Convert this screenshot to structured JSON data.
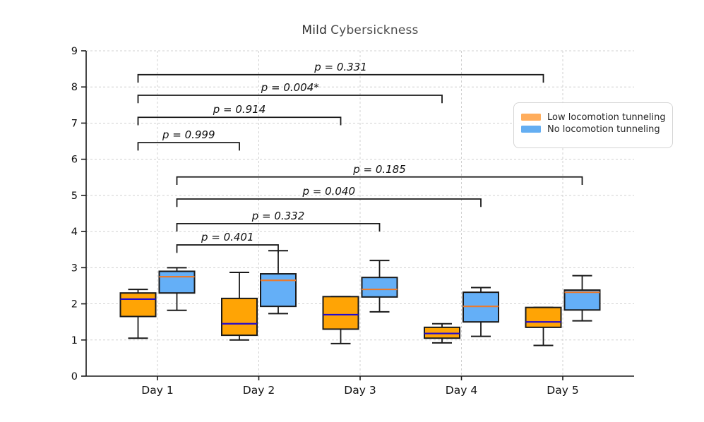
{
  "chart_data": {
    "type": "boxplot",
    "title": "Mild Cybersickness",
    "title_parts": {
      "emphasis": "Mild",
      "rest": "Cybersickness"
    },
    "categories": [
      "Day 1",
      "Day 2",
      "Day 3",
      "Day 4",
      "Day 5"
    ],
    "xlabel": "",
    "ylabel": "",
    "ylim": [
      0,
      9
    ],
    "yticks": [
      0,
      1,
      2,
      3,
      4,
      5,
      6,
      7,
      8,
      9
    ],
    "grid": {
      "show": true,
      "style": "dashed",
      "color": "#d0d0d0"
    },
    "axis_color": "#1a1a1a",
    "legend": {
      "position": "upper right"
    },
    "series": [
      {
        "name": "Low locomotion tunneling",
        "color": "#ffa405",
        "median_color": "#2209ce",
        "legend_color": "#ffad5c",
        "side": "left",
        "boxes": [
          {
            "whislo": 1.05,
            "q1": 1.65,
            "med": 2.13,
            "q3": 2.3,
            "whishi": 2.4
          },
          {
            "whislo": 1.0,
            "q1": 1.13,
            "med": 1.45,
            "q3": 2.15,
            "whishi": 2.87
          },
          {
            "whislo": 0.9,
            "q1": 1.3,
            "med": 1.7,
            "q3": 2.2,
            "whishi": 2.2
          },
          {
            "whislo": 0.92,
            "q1": 1.05,
            "med": 1.18,
            "q3": 1.35,
            "whishi": 1.45
          },
          {
            "whislo": 0.85,
            "q1": 1.35,
            "med": 1.5,
            "q3": 1.9,
            "whishi": 1.9
          }
        ]
      },
      {
        "name": "No locomotion tunneling",
        "color": "#64aff7",
        "median_color": "#e87b30",
        "legend_color": "#64aef2",
        "side": "right",
        "boxes": [
          {
            "whislo": 1.82,
            "q1": 2.3,
            "med": 2.75,
            "q3": 2.9,
            "whishi": 3.0
          },
          {
            "whislo": 1.73,
            "q1": 1.93,
            "med": 2.65,
            "q3": 2.83,
            "whishi": 3.47
          },
          {
            "whislo": 1.78,
            "q1": 2.19,
            "med": 2.4,
            "q3": 2.73,
            "whishi": 3.2
          },
          {
            "whislo": 1.1,
            "q1": 1.5,
            "med": 1.93,
            "q3": 2.32,
            "whishi": 2.45
          },
          {
            "whislo": 1.53,
            "q1": 1.83,
            "med": 2.32,
            "q3": 2.38,
            "whishi": 2.78
          }
        ]
      }
    ],
    "significance_brackets": [
      {
        "label": "p = 0.331",
        "p": 0.331,
        "series": 0,
        "day_from": 0,
        "day_to": 4,
        "height": 8.34
      },
      {
        "label": "p = 0.004*",
        "p": 0.004,
        "series": 0,
        "day_from": 0,
        "day_to": 3,
        "height": 7.77
      },
      {
        "label": "p = 0.914",
        "p": 0.914,
        "series": 0,
        "day_from": 0,
        "day_to": 2,
        "height": 7.16
      },
      {
        "label": "p = 0.999",
        "p": 0.999,
        "series": 0,
        "day_from": 0,
        "day_to": 1,
        "height": 6.46
      },
      {
        "label": "p = 0.185",
        "p": 0.185,
        "series": 1,
        "day_from": 0,
        "day_to": 4,
        "height": 5.51
      },
      {
        "label": "p = 0.040",
        "p": 0.04,
        "series": 1,
        "day_from": 0,
        "day_to": 3,
        "height": 4.9
      },
      {
        "label": "p = 0.332",
        "p": 0.332,
        "series": 1,
        "day_from": 0,
        "day_to": 2,
        "height": 4.22
      },
      {
        "label": "p = 0.401",
        "p": 0.401,
        "series": 1,
        "day_from": 0,
        "day_to": 1,
        "height": 3.63
      }
    ]
  }
}
